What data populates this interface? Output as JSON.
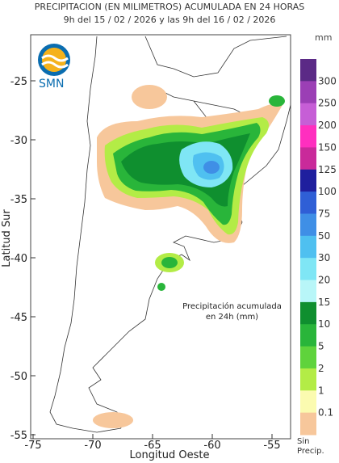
{
  "header": {
    "title_line1": "PRECIPITACION (EN MILIMETROS) ACUMULADA EN 24 HORAS",
    "title_line2": "9h del 15 / 02 / 2026  y las 9h del 16 / 02 / 2026",
    "unit": "mm"
  },
  "logo": {
    "text": "SMN",
    "colors": {
      "primary": "#0a6db0",
      "accent": "#f5b21b"
    }
  },
  "axes": {
    "xlabel": "Longitud Oeste",
    "ylabel": "Latitud Sur",
    "xticks": [
      "-75",
      "-70",
      "-65",
      "-60",
      "-55"
    ],
    "yticks": [
      "-25",
      "-30",
      "-35",
      "-40",
      "-45",
      "-50",
      "-55"
    ]
  },
  "note": {
    "line1": "Precipitación acumulada",
    "line2": "en 24h (mm)"
  },
  "legend": {
    "items": [
      {
        "label": "300",
        "color": "#5b2a86"
      },
      {
        "label": "250",
        "color": "#9b3fb5"
      },
      {
        "label": "200",
        "color": "#c65ed6"
      },
      {
        "label": "150",
        "color": "#ff2fbf"
      },
      {
        "label": "125",
        "color": "#c92a9a"
      },
      {
        "label": "100",
        "color": "#1f1f9e"
      },
      {
        "label": "75",
        "color": "#2f5fd6"
      },
      {
        "label": "50",
        "color": "#3f8fe6"
      },
      {
        "label": "30",
        "color": "#4fc0f0"
      },
      {
        "label": "20",
        "color": "#7fe6f5"
      },
      {
        "label": "15",
        "color": "#b8f6f8"
      },
      {
        "label": "10",
        "color": "#0f8f2f"
      },
      {
        "label": "5",
        "color": "#29b53a"
      },
      {
        "label": "2",
        "color": "#5fd33c"
      },
      {
        "label": "1",
        "color": "#b3ec46"
      },
      {
        "label": "0.1",
        "color": "#fbfbb0"
      },
      {
        "label": "",
        "color": "#f7c79b"
      }
    ],
    "sin_precip_line1": "Sin",
    "sin_precip_line2": "Precip."
  }
}
